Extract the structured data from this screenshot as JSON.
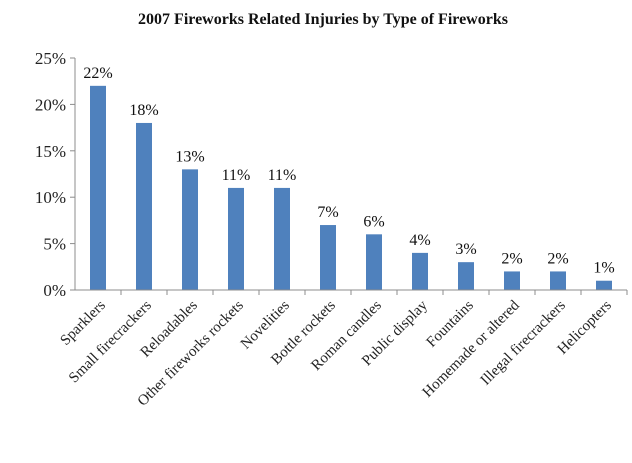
{
  "chart_data": {
    "type": "bar",
    "title": "2007 Fireworks Related Injuries by Type of Fireworks",
    "xlabel": "",
    "ylabel": "",
    "categories": [
      "Sparklers",
      "Small firecrackers",
      "Reloadables",
      "Other fireworks rockets",
      "Novelities",
      "Bottle rockets",
      "Roman candles",
      "Public display",
      "Fountains",
      "Homemade or altered",
      "Illegal firecrackers",
      "Helicopters"
    ],
    "values": [
      22,
      18,
      13,
      11,
      11,
      7,
      6,
      4,
      3,
      2,
      2,
      1
    ],
    "data_labels": [
      "22%",
      "18%",
      "13%",
      "11%",
      "11%",
      "7%",
      "6%",
      "4%",
      "3%",
      "2%",
      "2%",
      "1%"
    ],
    "ylim": [
      0,
      25
    ],
    "yticks": [
      0,
      5,
      10,
      15,
      20,
      25
    ],
    "ytick_labels": [
      "0%",
      "5%",
      "10%",
      "15%",
      "20%",
      "25%"
    ],
    "bar_color": "#4f81bd",
    "grid": false,
    "legend": "none"
  }
}
